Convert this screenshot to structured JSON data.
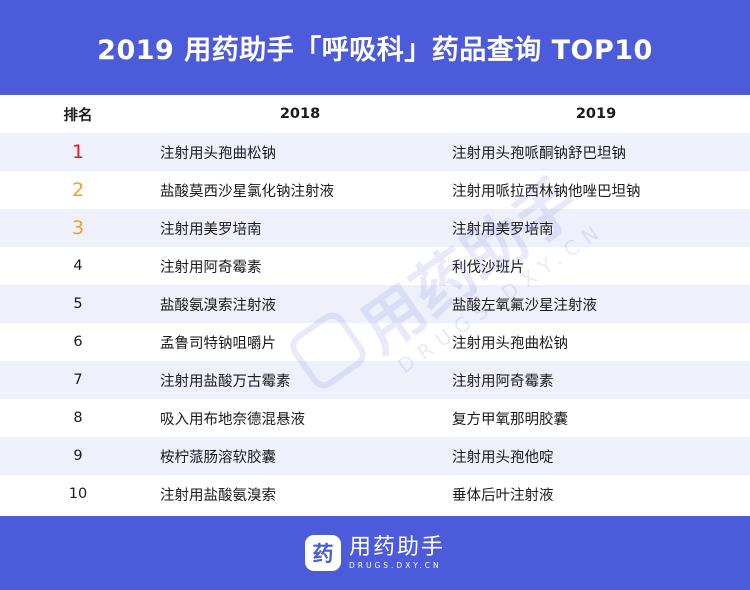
{
  "header": {
    "title": "2019 用药助手「呼吸科」药品查询 TOP10"
  },
  "table": {
    "columns": [
      "排名",
      "2018",
      "2019"
    ],
    "rows": [
      {
        "rank": "1",
        "y2018": "注射用头孢曲松钠",
        "y2019": "注射用头孢哌酮钠舒巴坦钠"
      },
      {
        "rank": "2",
        "y2018": "盐酸莫西沙星氯化钠注射液",
        "y2019": "注射用哌拉西林钠他唑巴坦钠"
      },
      {
        "rank": "3",
        "y2018": "注射用美罗培南",
        "y2019": "注射用美罗培南"
      },
      {
        "rank": "4",
        "y2018": "注射用阿奇霉素",
        "y2019": "利伐沙班片"
      },
      {
        "rank": "5",
        "y2018": "盐酸氨溴索注射液",
        "y2019": "盐酸左氧氟沙星注射液"
      },
      {
        "rank": "6",
        "y2018": "孟鲁司特钠咀嚼片",
        "y2019": "注射用头孢曲松钠"
      },
      {
        "rank": "7",
        "y2018": "注射用盐酸万古霉素",
        "y2019": "注射用阿奇霉素"
      },
      {
        "rank": "8",
        "y2018": "吸入用布地奈德混悬液",
        "y2019": "复方甲氧那明胶囊"
      },
      {
        "rank": "9",
        "y2018": "桉柠蒎肠溶软胶囊",
        "y2019": "注射用头孢他啶"
      },
      {
        "rank": "10",
        "y2018": "注射用盐酸氨溴索",
        "y2019": "垂体后叶注射液"
      }
    ],
    "rank_colors": {
      "1": "#e02020",
      "2": "#f5a01a",
      "3": "#f5a01a"
    }
  },
  "watermark": {
    "text": "用药助手",
    "sub": "DRUGS.DXY.CN"
  },
  "footer": {
    "logo_char": "药",
    "name": "用药助手",
    "domain": "DRUGS.DXY.CN"
  }
}
